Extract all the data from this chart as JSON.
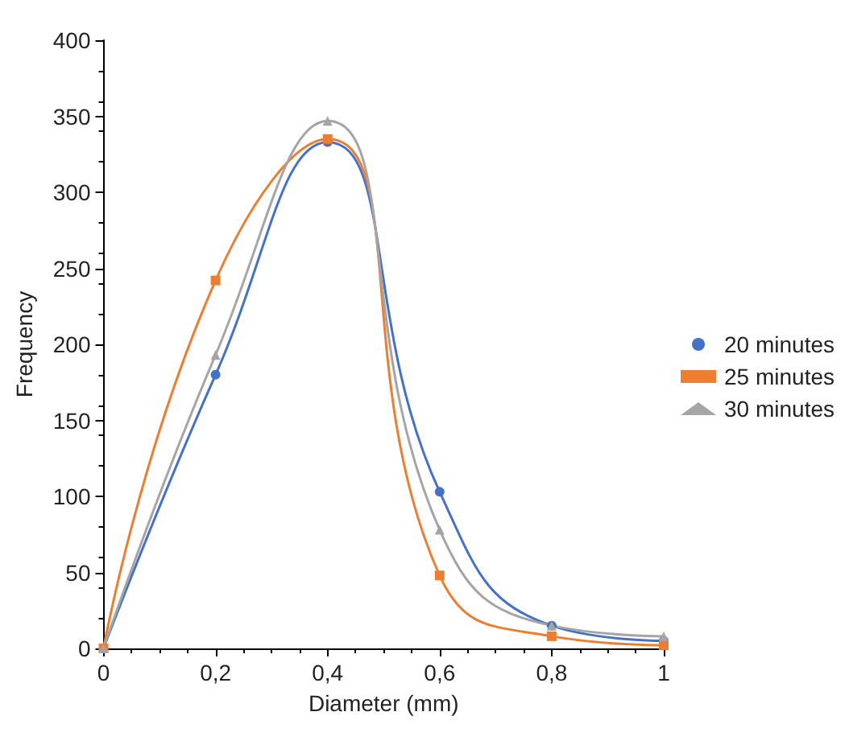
{
  "chart_data": {
    "type": "line",
    "xlabel": "Diameter (mm)",
    "ylabel": "Frequency",
    "x": [
      0,
      0.2,
      0.4,
      0.6,
      0.8,
      1
    ],
    "series": [
      {
        "name": "20 minutes",
        "color": "#4472c4",
        "marker": "circle",
        "values": [
          0,
          180,
          333,
          103,
          15,
          5
        ]
      },
      {
        "name": "25 minutes",
        "color": "#ed7d31",
        "marker": "square",
        "values": [
          0,
          242,
          335,
          48,
          8,
          2
        ]
      },
      {
        "name": "30 minutes",
        "color": "#a5a5a5",
        "marker": "triangle",
        "values": [
          0,
          193,
          347,
          78,
          15,
          8
        ]
      }
    ],
    "xlim": [
      0,
      1
    ],
    "xticks": [
      0,
      {
        "value": 0.2,
        "label": "0,2"
      },
      {
        "value": 0.4,
        "label": "0,4"
      },
      {
        "value": 0.6,
        "label": "0,6"
      },
      {
        "value": 0.8,
        "label": "0,8"
      },
      1
    ],
    "ylim": [
      0,
      400
    ],
    "yticks": [
      0,
      50,
      100,
      150,
      200,
      250,
      300,
      350,
      400
    ],
    "grid": false,
    "legend": "right",
    "line_style": "solid"
  }
}
